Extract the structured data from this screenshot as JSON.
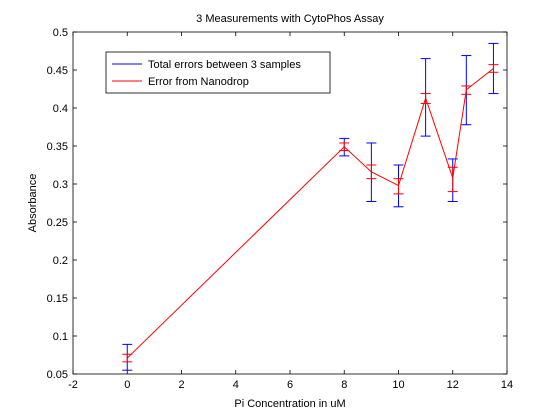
{
  "chart_data": {
    "type": "line",
    "title": "3 Measurements with CytoPhos Assay",
    "xlabel": "Pi Concentration in uM",
    "ylabel": "Absorbance",
    "xlim": [
      -2,
      14
    ],
    "ylim": [
      0.05,
      0.5
    ],
    "x_ticks": [
      "-2",
      "0",
      "2",
      "4",
      "6",
      "8",
      "10",
      "12",
      "14"
    ],
    "y_ticks": [
      "0.05",
      "0.1",
      "0.15",
      "0.2",
      "0.25",
      "0.3",
      "0.35",
      "0.4",
      "0.45",
      "0.5"
    ],
    "x_tick_values": [
      -2,
      0,
      2,
      4,
      6,
      8,
      10,
      12,
      14
    ],
    "y_tick_values": [
      0.05,
      0.1,
      0.15,
      0.2,
      0.25,
      0.3,
      0.35,
      0.4,
      0.45,
      0.5
    ],
    "grid": false,
    "legend_position": "top-left",
    "x": [
      0,
      8,
      9,
      10,
      11,
      12,
      12.5,
      13.5
    ],
    "series": [
      {
        "name": "Total errors between 3 samples",
        "color": "#0000ff",
        "style": "errorbar",
        "lower": [
          0.055,
          0.337,
          0.277,
          0.27,
          0.363,
          0.277,
          0.378,
          0.419
        ],
        "upper": [
          0.089,
          0.36,
          0.354,
          0.325,
          0.465,
          0.333,
          0.469,
          0.485
        ]
      },
      {
        "name": "Error from Nanodrop",
        "color": "#ff0000",
        "style": "line-with-errorbars",
        "values": [
          0.071,
          0.349,
          0.316,
          0.298,
          0.413,
          0.308,
          0.424,
          0.452
        ],
        "lower": [
          0.066,
          0.344,
          0.307,
          0.287,
          0.406,
          0.29,
          0.418,
          0.447
        ],
        "upper": [
          0.076,
          0.354,
          0.325,
          0.307,
          0.419,
          0.322,
          0.429,
          0.457
        ]
      }
    ]
  }
}
